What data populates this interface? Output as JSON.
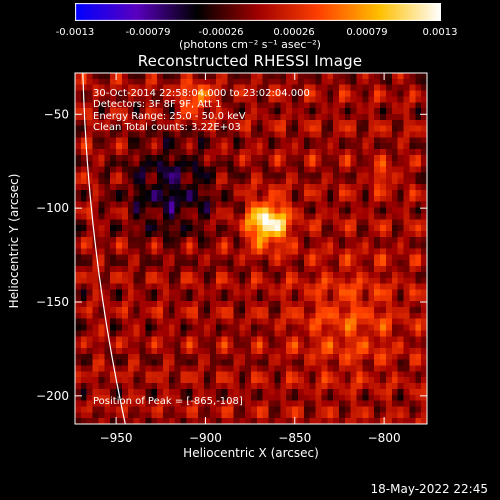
{
  "colorbar": {
    "ticks": [
      "-0.0013",
      "-0.00079",
      "-0.00026",
      "0.00026",
      "0.00079",
      "0.0013"
    ],
    "tick_values": [
      -0.0013,
      -0.00079,
      -0.00026,
      0.00026,
      0.00079,
      0.0013
    ],
    "range": [
      -0.0013,
      0.0013
    ],
    "units": "(photons cm⁻² s⁻¹ asec⁻²)",
    "colors": [
      "#0000ff",
      "#5a00c0",
      "#000000",
      "#a00000",
      "#ff4000",
      "#ffc000",
      "#ffffff"
    ]
  },
  "chart_data": {
    "type": "heatmap",
    "title": "Reconstructed RHESSI Image",
    "xlabel": "Heliocentric X (arcsec)",
    "ylabel": "Heliocentric Y (arcsec)",
    "xlim": [
      -973,
      -776
    ],
    "ylim": [
      -215,
      -28
    ],
    "x_ticks": [
      -950,
      -900,
      -850,
      -800
    ],
    "y_ticks": [
      -50,
      -100,
      -150,
      -200
    ],
    "peak": [
      -865,
      -108
    ],
    "annotations": [
      "30-Oct-2014 22:58:04.000 to 23:02:04.000",
      "Detectors: 3F 8F 9F, Att 1",
      "Energy Range: 25.0 - 50.0 keV",
      "Clean     Total counts: 3.22E+03"
    ],
    "peak_label": "Position of Peak = [-865,-108]"
  },
  "footer": {
    "timestamp": "18-May-2022 22:45"
  }
}
